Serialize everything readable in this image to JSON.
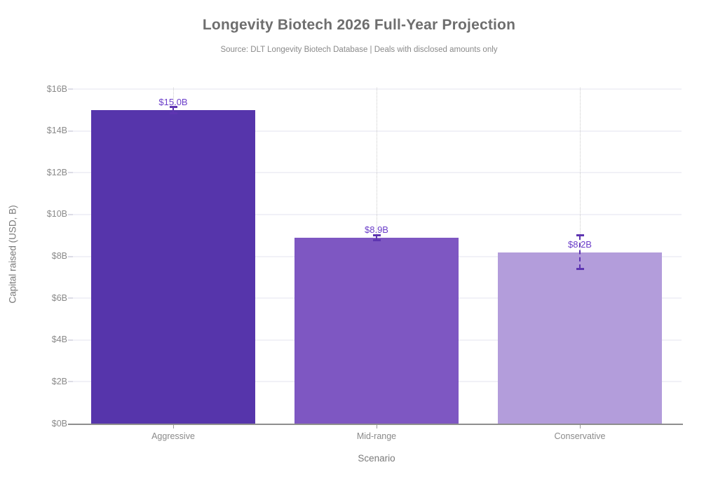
{
  "chart_data": {
    "type": "bar",
    "title": "Longevity Biotech 2026 Full-Year Projection",
    "subtitle": "Source: DLT Longevity Biotech Database | Deals with disclosed amounts only",
    "xlabel": "Scenario",
    "ylabel": "Capital raised (USD, B)",
    "categories": [
      "Aggressive",
      "Mid-range",
      "Conservative"
    ],
    "values": [
      15.0,
      8.9,
      8.2
    ],
    "bar_labels": [
      "$15.0B",
      "$8.9B",
      "$8.2B"
    ],
    "error_bars": [
      0.15,
      0.12,
      0.8
    ],
    "ylim": [
      0,
      16
    ],
    "ytick_values": [
      0,
      2,
      4,
      6,
      8,
      10,
      12,
      14,
      16
    ],
    "ytick_labels": [
      "$0B",
      "$2B",
      "$4B",
      "$6B",
      "$8B",
      "$10B",
      "$12B",
      "$14B",
      "$16B"
    ],
    "legend": "none",
    "grid": {
      "horizontal": true,
      "vertical_category_lines": "dotted"
    },
    "colors": {
      "bars": [
        "#5635ab",
        "#7e57c2",
        "#b39ddb"
      ],
      "error_bar": "#5e35b1",
      "value_label": "#6b3ec9",
      "title": "#6e6e6e",
      "subtitle": "#8a8a8a",
      "axis_label": "#7a7a7a",
      "tick_label": "#8a8a8a",
      "gridline": "#f1f1f7",
      "axis_line": "#8e8e8e",
      "category_line": "#c9c9c9"
    }
  }
}
